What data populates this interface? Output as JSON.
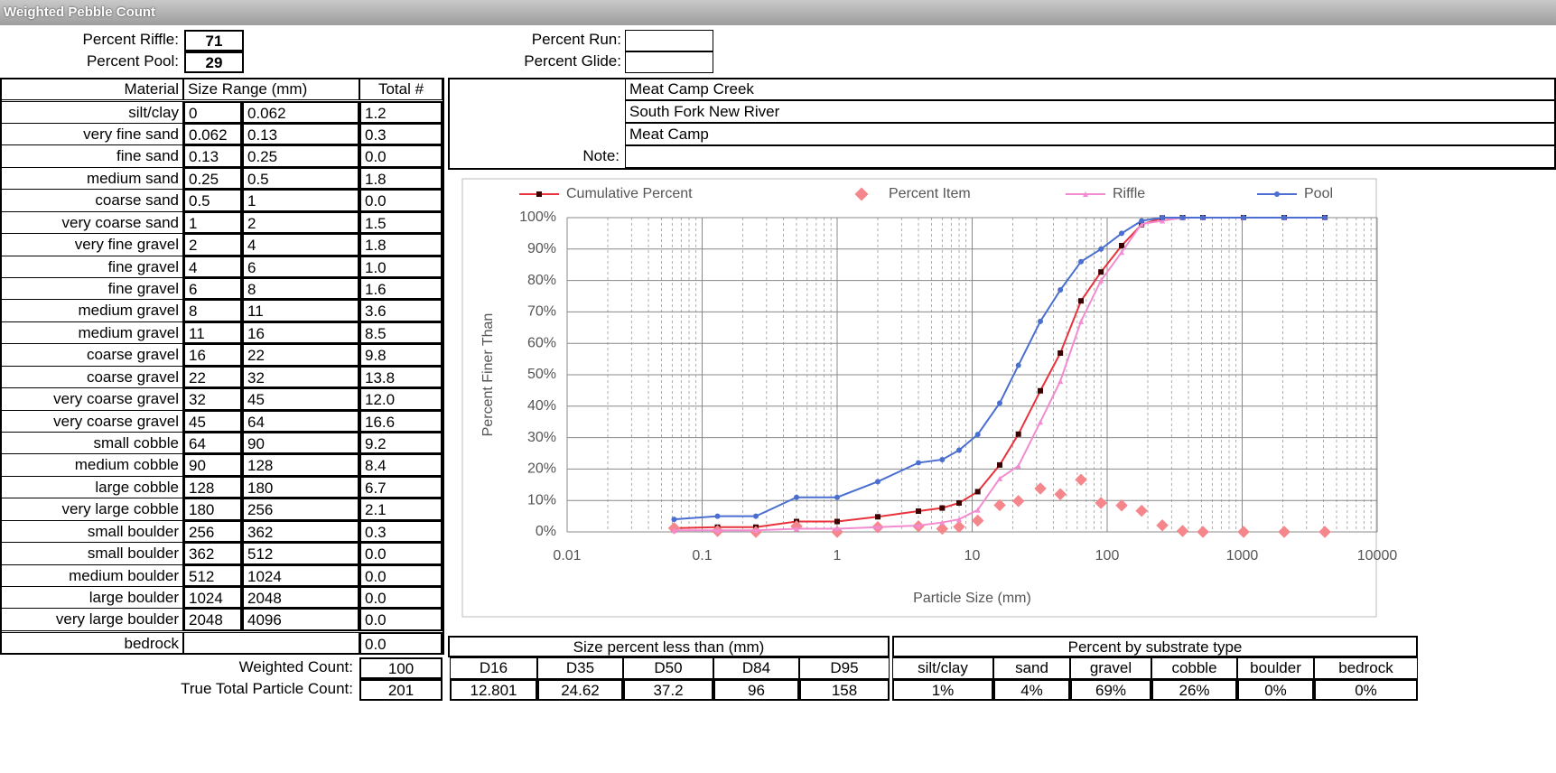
{
  "title": "Weighted Pebble Count",
  "header": {
    "percent_riffle_label": "Percent Riffle:",
    "percent_riffle": "71",
    "percent_pool_label": "Percent Pool:",
    "percent_pool": "29",
    "percent_run_label": "Percent Run:",
    "percent_glide_label": "Percent Glide:"
  },
  "site": {
    "stream": "Meat Camp Creek",
    "basin": "South Fork New River",
    "location": "Meat Camp",
    "note_label": "Note:"
  },
  "materials": {
    "columns": [
      "Material",
      "Size Range (mm)",
      "Total #"
    ],
    "rows": [
      [
        "silt/clay",
        "0",
        "0.062",
        "1.2"
      ],
      [
        "very fine sand",
        "0.062",
        "0.13",
        "0.3"
      ],
      [
        "fine sand",
        "0.13",
        "0.25",
        "0.0"
      ],
      [
        "medium sand",
        "0.25",
        "0.5",
        "1.8"
      ],
      [
        "coarse sand",
        "0.5",
        "1",
        "0.0"
      ],
      [
        "very coarse sand",
        "1",
        "2",
        "1.5"
      ],
      [
        "very fine gravel",
        "2",
        "4",
        "1.8"
      ],
      [
        "fine gravel",
        "4",
        "6",
        "1.0"
      ],
      [
        "fine gravel",
        "6",
        "8",
        "1.6"
      ],
      [
        "medium gravel",
        "8",
        "11",
        "3.6"
      ],
      [
        "medium gravel",
        "11",
        "16",
        "8.5"
      ],
      [
        "coarse gravel",
        "16",
        "22",
        "9.8"
      ],
      [
        "coarse gravel",
        "22",
        "32",
        "13.8"
      ],
      [
        "very coarse gravel",
        "32",
        "45",
        "12.0"
      ],
      [
        "very coarse gravel",
        "45",
        "64",
        "16.6"
      ],
      [
        "small cobble",
        "64",
        "90",
        "9.2"
      ],
      [
        "medium cobble",
        "90",
        "128",
        "8.4"
      ],
      [
        "large cobble",
        "128",
        "180",
        "6.7"
      ],
      [
        "very large cobble",
        "180",
        "256",
        "2.1"
      ],
      [
        "small boulder",
        "256",
        "362",
        "0.3"
      ],
      [
        "small boulder",
        "362",
        "512",
        "0.0"
      ],
      [
        "medium boulder",
        "512",
        "1024",
        "0.0"
      ],
      [
        "large boulder",
        "1024",
        "2048",
        "0.0"
      ],
      [
        "very large boulder",
        "2048",
        "4096",
        "0.0"
      ]
    ],
    "bedrock": {
      "label": "bedrock",
      "total": "0.0"
    }
  },
  "counts": {
    "weighted_label": "Weighted Count:",
    "weighted": "100",
    "true_label": "True Total Particle Count:",
    "true": "201"
  },
  "size_percent": {
    "title": "Size percent less than (mm)",
    "labels": [
      "D16",
      "D35",
      "D50",
      "D84",
      "D95"
    ],
    "values": [
      "12.801",
      "24.62",
      "37.2",
      "96",
      "158"
    ]
  },
  "substrate": {
    "title": "Percent by substrate type",
    "labels": [
      "silt/clay",
      "sand",
      "gravel",
      "cobble",
      "boulder",
      "bedrock"
    ],
    "values": [
      "1%",
      "4%",
      "69%",
      "26%",
      "0%",
      "0%"
    ]
  },
  "chart_data": {
    "type": "line",
    "xlabel": "Particle Size (mm)",
    "ylabel": "Percent Finer Than",
    "xscale": "log",
    "xlim": [
      0.01,
      10000
    ],
    "xticks": [
      0.01,
      0.1,
      1,
      10,
      100,
      1000,
      10000
    ],
    "ylim": [
      0,
      100
    ],
    "yticks": [
      {
        "value": 0,
        "label": "0%"
      },
      {
        "value": 10,
        "label": "10%"
      },
      {
        "value": 20,
        "label": "20%"
      },
      {
        "value": 30,
        "label": "30%"
      },
      {
        "value": 40,
        "label": "40%"
      },
      {
        "value": 50,
        "label": "50%"
      },
      {
        "value": 60,
        "label": "60%"
      },
      {
        "value": 70,
        "label": "70%"
      },
      {
        "value": 80,
        "label": "80%"
      },
      {
        "value": 90,
        "label": "90%"
      },
      {
        "value": 100,
        "label": "100%"
      }
    ],
    "grid": true,
    "legend": "top",
    "x": [
      0.062,
      0.13,
      0.25,
      0.5,
      1,
      2,
      4,
      6,
      8,
      11,
      16,
      22,
      32,
      45,
      64,
      90,
      128,
      180,
      256,
      362,
      512,
      1024,
      2048,
      4096
    ],
    "series": [
      {
        "name": "Cumulative Percent",
        "style": "line",
        "marker": "square",
        "color": "#e8323c",
        "marker_color": "#3a0000",
        "values": [
          1.2,
          1.5,
          1.5,
          3.3,
          3.3,
          4.8,
          6.6,
          7.6,
          9.2,
          12.8,
          21.3,
          31.1,
          44.9,
          56.9,
          73.5,
          82.7,
          91.1,
          97.8,
          99.9,
          100,
          100,
          100,
          100,
          100
        ]
      },
      {
        "name": "Percent Item",
        "style": "marker",
        "marker": "diamond",
        "color": "#f4868c",
        "values": [
          1.2,
          0.3,
          0.0,
          1.8,
          0.0,
          1.5,
          1.8,
          1.0,
          1.6,
          3.6,
          8.5,
          9.8,
          13.8,
          12.0,
          16.6,
          9.2,
          8.4,
          6.7,
          2.1,
          0.3,
          0.0,
          0.0,
          0.0,
          0.0
        ]
      },
      {
        "name": "Riffle",
        "style": "line",
        "marker": "triangle",
        "color": "#f28bd0",
        "values": [
          0.5,
          0.5,
          0.5,
          1,
          1,
          1.5,
          2,
          3,
          4,
          7,
          17,
          21,
          35,
          48,
          67,
          80,
          89,
          98,
          99,
          100,
          100,
          100,
          100,
          100
        ]
      },
      {
        "name": "Pool",
        "style": "line",
        "marker": "circle",
        "color": "#4a6fd1",
        "values": [
          4,
          5,
          5,
          11,
          11,
          16,
          22,
          23,
          26,
          31,
          41,
          53,
          67,
          77,
          86,
          90,
          95,
          99,
          100,
          100,
          100,
          100,
          100,
          100
        ]
      }
    ]
  }
}
